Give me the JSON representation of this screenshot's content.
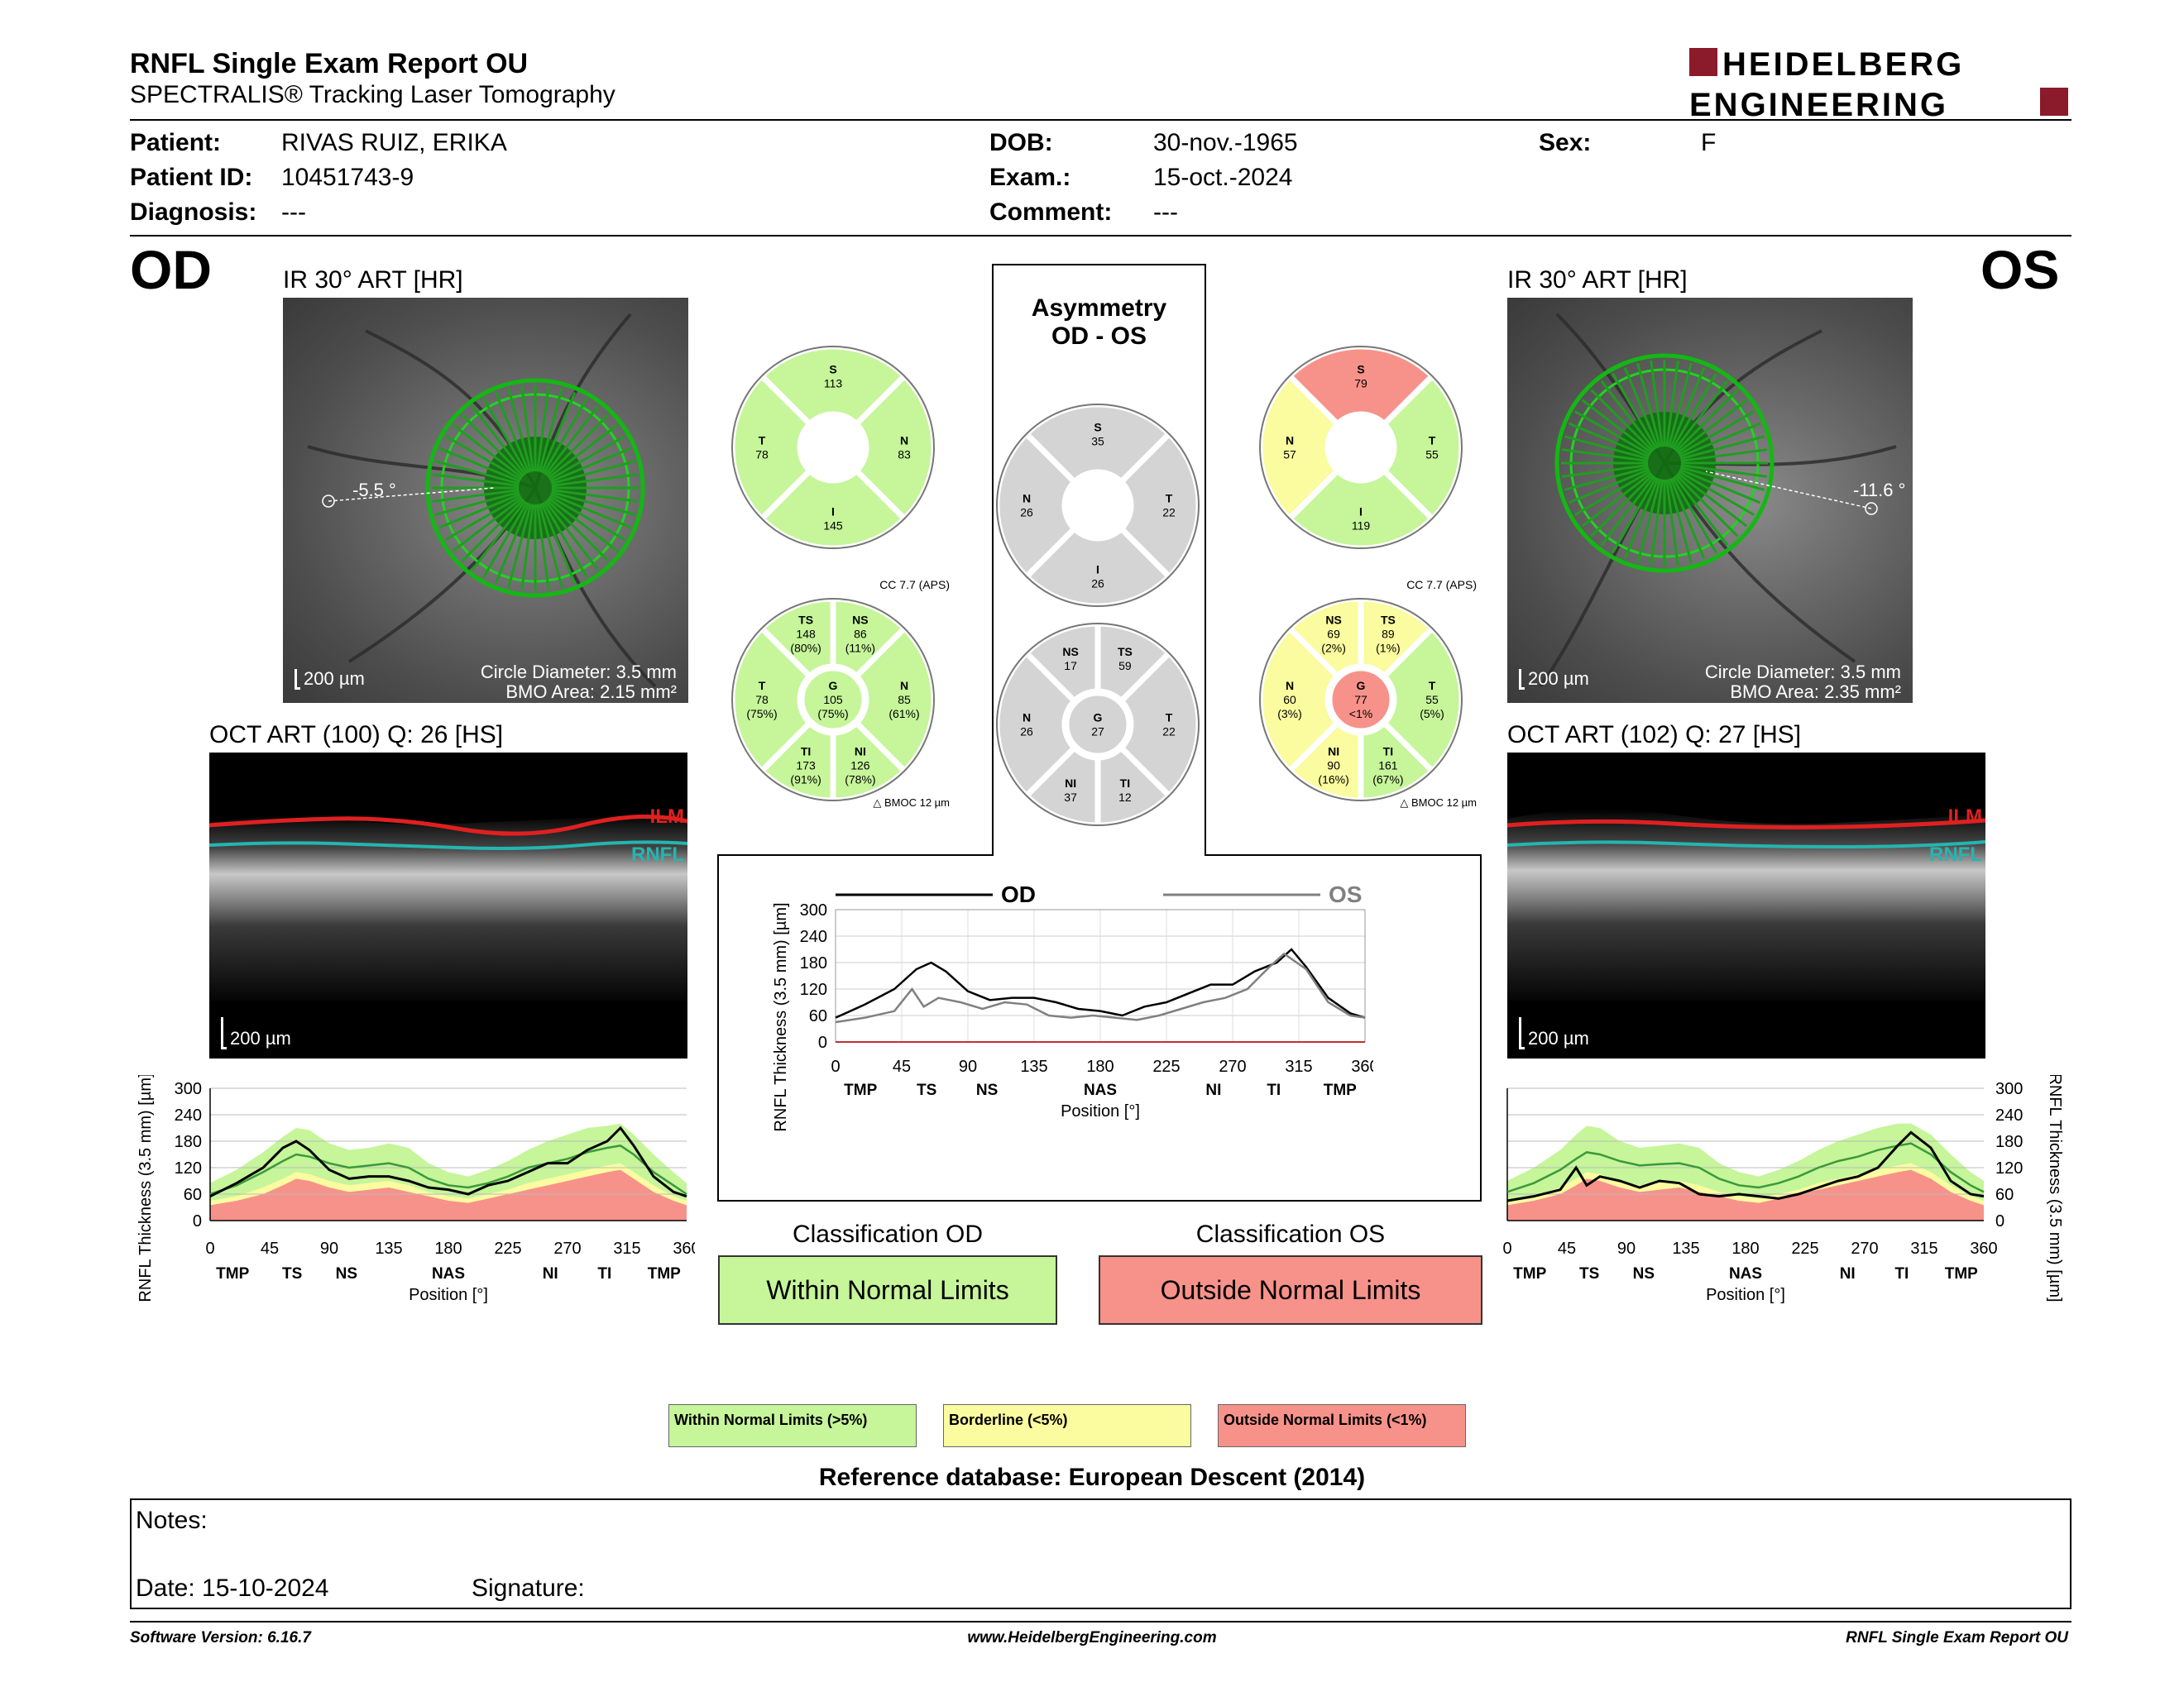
{
  "report": {
    "title": "RNFL Single Exam Report OU",
    "subtitle": "SPECTRALIS® Tracking Laser Tomography",
    "logo_line1": "HEIDELBERG",
    "logo_line2": "ENGINEERING"
  },
  "patient": {
    "patient_label": "Patient:",
    "patient_value": "RIVAS RUIZ, ERIKA",
    "id_label": "Patient ID:",
    "id_value": "10451743-9",
    "diagnosis_label": "Diagnosis:",
    "diagnosis_value": "---",
    "dob_label": "DOB:",
    "dob_value": "30-nov.-1965",
    "exam_label": "Exam.:",
    "exam_value": "15-oct.-2024",
    "comment_label": "Comment:",
    "comment_value": "---",
    "sex_label": "Sex:",
    "sex_value": "F"
  },
  "od": {
    "eye_label": "OD",
    "ir_title": "IR 30° ART [HR]",
    "angle": "-5.5 °",
    "scale": "200 µm",
    "circle_diameter": "Circle Diameter: 3.5 mm",
    "bmo_area": "BMO Area: 2.15 mm²",
    "oct_title": "OCT ART (100) Q: 26 [HS]",
    "oct_scale": "200 µm",
    "ilm": "ILM",
    "rnfl": "RNFL",
    "classification_title": "Classification OD",
    "classification": "Within Normal Limits"
  },
  "os": {
    "eye_label": "OS",
    "ir_title": "IR 30° ART [HR]",
    "angle": "-11.6 °",
    "scale": "200 µm",
    "circle_diameter": "Circle Diameter: 3.5 mm",
    "bmo_area": "BMO Area: 2.35 mm²",
    "oct_title": "OCT ART (102) Q: 27 [HS]",
    "oct_scale": "200 µm",
    "ilm": "ILM",
    "rnfl": "RNFL",
    "classification_title": "Classification OS",
    "classification": "Outside Normal Limits"
  },
  "asymmetry": {
    "title_line1": "Asymmetry",
    "title_line2": "OD - OS"
  },
  "sectors": {
    "od4": {
      "S": "113",
      "T": "78",
      "N": "83",
      "I": "145"
    },
    "od6": {
      "TS": "148",
      "TS_pct": "(80%)",
      "NS": "86",
      "NS_pct": "(11%)",
      "T": "78",
      "T_pct": "(75%)",
      "G": "105",
      "G_pct": "(75%)",
      "N": "85",
      "N_pct": "(61%)",
      "TI": "173",
      "TI_pct": "(91%)",
      "NI": "126",
      "NI_pct": "(78%)"
    },
    "asym4": {
      "S": "35",
      "N": "26",
      "T": "22",
      "I": "26"
    },
    "asym6": {
      "NS": "17",
      "TS": "59",
      "N": "26",
      "G": "27",
      "T": "22",
      "NI": "37",
      "TI": "12"
    },
    "os4": {
      "S": "79",
      "N": "57",
      "T": "55",
      "I": "119"
    },
    "os6": {
      "NS": "69",
      "NS_pct": "(2%)",
      "TS": "89",
      "TS_pct": "(1%)",
      "N": "60",
      "N_pct": "(3%)",
      "G": "77",
      "G_pct": "<1%",
      "T": "55",
      "T_pct": "(5%)",
      "NI": "90",
      "NI_pct": "(16%)",
      "TI": "161",
      "TI_pct": "(67%)"
    },
    "cc": "CC 7.7 (APS)",
    "bmoc": "BMOC 12 µm"
  },
  "labels": {
    "S": "S",
    "T": "T",
    "N": "N",
    "I": "I",
    "G": "G",
    "TS": "TS",
    "NS": "NS",
    "TI": "TI",
    "NI": "NI"
  },
  "legend": {
    "wnl": "Within Normal Limits (>5%)",
    "bl": "Borderline (<5%)",
    "onl": "Outside Normal Limits (<1%)",
    "reference": "Reference database: European Descent (2014)"
  },
  "notes": {
    "notes_label": "Notes:",
    "date_label": "Date: 15-10-2024",
    "signature_label": "Signature:"
  },
  "footer": {
    "version": "Software Version: 6.16.7",
    "website": "www.HeidelbergEngineering.com",
    "report": "RNFL Single Exam Report OU"
  },
  "colors": {
    "wnl": "#c6f59a",
    "borderline": "#fbfb9f",
    "onl": "#f7928a",
    "grey": "#d4d4d4"
  },
  "chart_data": [
    {
      "type": "line",
      "name": "od_thickness",
      "ylabel": "RNFL Thickness (3.5 mm) [µm]",
      "xlabel": "Position [°]",
      "xlim": [
        0,
        360
      ],
      "ylim": [
        0,
        300
      ],
      "x_ticks": [
        0,
        45,
        90,
        135,
        180,
        225,
        270,
        315,
        360
      ],
      "y_ticks": [
        0,
        60,
        120,
        180,
        240,
        300
      ],
      "sector_labels": [
        {
          "x": 17,
          "label": "TMP"
        },
        {
          "x": 62,
          "label": "TS"
        },
        {
          "x": 103,
          "label": "NS"
        },
        {
          "x": 180,
          "label": "NAS"
        },
        {
          "x": 257,
          "label": "NI"
        },
        {
          "x": 298,
          "label": "TI"
        },
        {
          "x": 343,
          "label": "TMP"
        }
      ],
      "x": [
        0,
        20,
        40,
        55,
        65,
        75,
        90,
        105,
        120,
        135,
        150,
        165,
        180,
        195,
        210,
        225,
        240,
        255,
        270,
        285,
        300,
        310,
        320,
        335,
        350,
        360
      ],
      "values": [
        55,
        85,
        120,
        165,
        180,
        160,
        115,
        95,
        100,
        100,
        90,
        75,
        70,
        60,
        80,
        90,
        110,
        130,
        130,
        160,
        180,
        210,
        170,
        100,
        65,
        55
      ],
      "normal_mean": [
        60,
        80,
        110,
        135,
        150,
        145,
        130,
        120,
        125,
        130,
        120,
        95,
        80,
        75,
        85,
        100,
        120,
        130,
        140,
        155,
        165,
        170,
        150,
        110,
        80,
        60
      ],
      "upper_band": [
        85,
        115,
        155,
        190,
        210,
        205,
        175,
        160,
        165,
        175,
        165,
        130,
        110,
        100,
        115,
        135,
        160,
        180,
        195,
        210,
        215,
        220,
        195,
        150,
        110,
        85
      ],
      "lower_wnl": [
        45,
        55,
        75,
        95,
        110,
        105,
        90,
        80,
        85,
        90,
        80,
        65,
        55,
        50,
        60,
        70,
        85,
        95,
        105,
        115,
        125,
        130,
        110,
        80,
        55,
        45
      ],
      "lower_bl": [
        35,
        45,
        60,
        80,
        95,
        90,
        75,
        65,
        70,
        75,
        65,
        55,
        45,
        40,
        50,
        60,
        70,
        80,
        90,
        100,
        110,
        115,
        95,
        65,
        45,
        35
      ]
    },
    {
      "type": "line",
      "name": "os_thickness",
      "ylabel": "RNFL Thickness (3.5 mm) [µm]",
      "xlabel": "Position [°]",
      "xlim": [
        0,
        360
      ],
      "ylim": [
        0,
        300
      ],
      "x_ticks": [
        0,
        45,
        90,
        135,
        180,
        225,
        270,
        315,
        360
      ],
      "y_ticks": [
        0,
        60,
        120,
        180,
        240,
        300
      ],
      "sector_labels": [
        {
          "x": 17,
          "label": "TMP"
        },
        {
          "x": 62,
          "label": "TS"
        },
        {
          "x": 103,
          "label": "NS"
        },
        {
          "x": 180,
          "label": "NAS"
        },
        {
          "x": 257,
          "label": "NI"
        },
        {
          "x": 298,
          "label": "TI"
        },
        {
          "x": 343,
          "label": "TMP"
        }
      ],
      "x": [
        0,
        20,
        40,
        52,
        60,
        70,
        85,
        100,
        115,
        130,
        145,
        160,
        175,
        190,
        205,
        220,
        235,
        250,
        265,
        280,
        295,
        305,
        320,
        335,
        350,
        360
      ],
      "values": [
        45,
        55,
        70,
        120,
        80,
        100,
        90,
        75,
        90,
        85,
        60,
        55,
        60,
        55,
        50,
        60,
        75,
        90,
        100,
        120,
        170,
        200,
        165,
        90,
        60,
        55
      ],
      "normal_mean": [
        65,
        85,
        115,
        140,
        155,
        150,
        135,
        125,
        128,
        130,
        120,
        95,
        80,
        75,
        85,
        100,
        120,
        135,
        145,
        160,
        170,
        175,
        150,
        110,
        80,
        65
      ],
      "upper_band": [
        90,
        120,
        160,
        195,
        215,
        210,
        180,
        165,
        170,
        175,
        165,
        130,
        110,
        100,
        115,
        135,
        160,
        180,
        195,
        210,
        220,
        220,
        195,
        150,
        110,
        90
      ],
      "lower_wnl": [
        45,
        55,
        75,
        95,
        110,
        105,
        90,
        80,
        85,
        90,
        80,
        65,
        55,
        50,
        60,
        70,
        85,
        95,
        105,
        115,
        125,
        130,
        110,
        80,
        55,
        45
      ],
      "lower_bl": [
        35,
        45,
        60,
        80,
        95,
        90,
        75,
        65,
        70,
        75,
        65,
        55,
        45,
        40,
        50,
        60,
        70,
        80,
        90,
        100,
        110,
        115,
        95,
        65,
        45,
        35
      ]
    },
    {
      "type": "line",
      "name": "comparison",
      "ylabel": "RNFL Thickness (3.5 mm) [µm]",
      "xlabel": "Position [°]",
      "xlim": [
        0,
        360
      ],
      "ylim": [
        0,
        300
      ],
      "x_ticks": [
        0,
        45,
        90,
        135,
        180,
        225,
        270,
        315,
        360
      ],
      "y_ticks": [
        0,
        60,
        120,
        180,
        240,
        300
      ],
      "sector_labels": [
        {
          "x": 17,
          "label": "TMP"
        },
        {
          "x": 62,
          "label": "TS"
        },
        {
          "x": 103,
          "label": "NS"
        },
        {
          "x": 180,
          "label": "NAS"
        },
        {
          "x": 257,
          "label": "NI"
        },
        {
          "x": 298,
          "label": "TI"
        },
        {
          "x": 343,
          "label": "TMP"
        }
      ],
      "series": [
        {
          "name": "OD",
          "x": [
            0,
            20,
            40,
            55,
            65,
            75,
            90,
            105,
            120,
            135,
            150,
            165,
            180,
            195,
            210,
            225,
            240,
            255,
            270,
            285,
            300,
            310,
            320,
            335,
            350,
            360
          ],
          "values": [
            55,
            85,
            120,
            165,
            180,
            160,
            115,
            95,
            100,
            100,
            90,
            75,
            70,
            60,
            80,
            90,
            110,
            130,
            130,
            160,
            180,
            210,
            170,
            100,
            65,
            55
          ],
          "color": "#000000"
        },
        {
          "name": "OS",
          "x": [
            0,
            20,
            40,
            52,
            60,
            70,
            85,
            100,
            115,
            130,
            145,
            160,
            175,
            190,
            205,
            220,
            235,
            250,
            265,
            280,
            295,
            305,
            320,
            335,
            350,
            360
          ],
          "values": [
            45,
            55,
            70,
            120,
            80,
            100,
            90,
            75,
            90,
            85,
            60,
            55,
            60,
            55,
            50,
            60,
            75,
            90,
            100,
            120,
            170,
            200,
            165,
            90,
            60,
            55
          ],
          "color": "#808080"
        }
      ]
    }
  ]
}
